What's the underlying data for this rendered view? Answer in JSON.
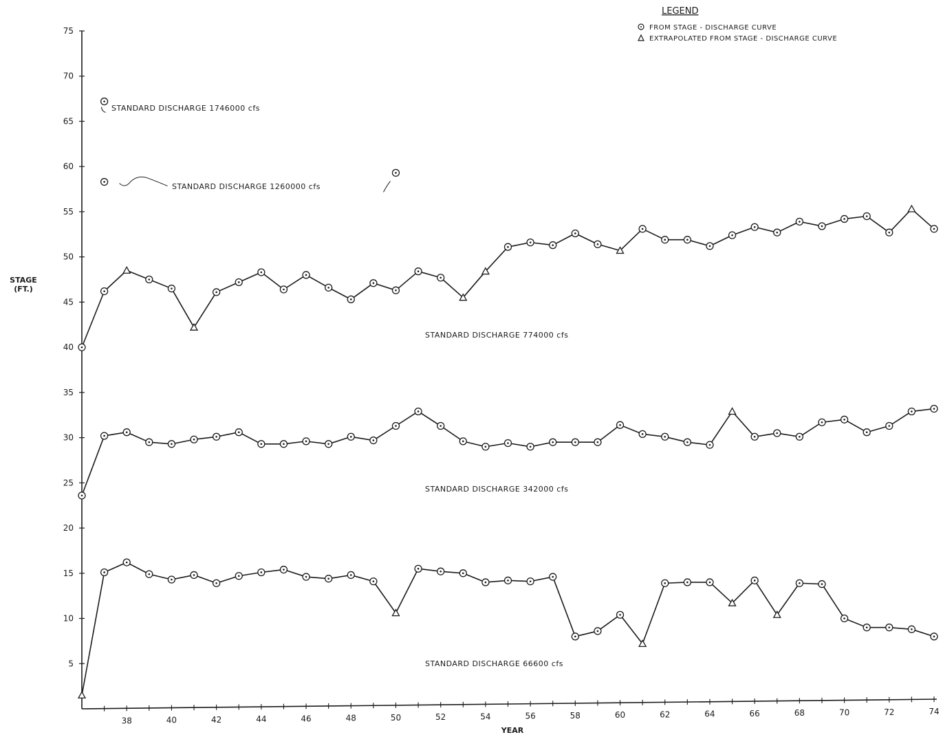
{
  "chart_data": {
    "type": "line",
    "xlabel": "YEAR",
    "ylabel": [
      "STAGE",
      "(FT.)"
    ],
    "xlim": [
      1936,
      1974
    ],
    "ylim": [
      0,
      75
    ],
    "y_ticks": [
      5,
      10,
      15,
      20,
      25,
      30,
      35,
      40,
      45,
      50,
      55,
      60,
      65,
      70,
      75
    ],
    "x_ticks": [
      1938,
      1940,
      1942,
      1944,
      1946,
      1948,
      1950,
      1952,
      1954,
      1956,
      1958,
      1960,
      1962,
      1964,
      1966,
      1968,
      1970,
      1972,
      1974
    ],
    "x_tick_labels": [
      "38",
      "40",
      "42",
      "44",
      "46",
      "48",
      "50",
      "52",
      "54",
      "56",
      "58",
      "60",
      "62",
      "64",
      "66",
      "68",
      "70",
      "72",
      "74"
    ],
    "grid": false,
    "legend": {
      "title": "LEGEND",
      "position": "top-right",
      "items": [
        {
          "marker": "circle-dot",
          "label": "FROM STAGE - DISCHARGE CURVE"
        },
        {
          "marker": "triangle",
          "label": "EXTRAPOLATED FROM STAGE - DISCHARGE CURVE"
        }
      ]
    },
    "series": [
      {
        "name": "STANDARD DISCHARGE 1746000 cfs",
        "x": [
          1937
        ],
        "y": [
          67.2
        ],
        "markers": [
          "circle"
        ]
      },
      {
        "name": "STANDARD DISCHARGE 1260000 cfs",
        "x": [
          1937,
          1950
        ],
        "y": [
          58.3,
          59.3
        ],
        "markers": [
          "circle",
          "circle"
        ],
        "connected": false
      },
      {
        "name": "STANDARD DISCHARGE 774000 cfs",
        "x": [
          1936,
          1937,
          1938,
          1939,
          1940,
          1941,
          1942,
          1943,
          1944,
          1945,
          1946,
          1947,
          1948,
          1949,
          1950,
          1951,
          1952,
          1953,
          1954,
          1955,
          1956,
          1957,
          1958,
          1959,
          1960,
          1961,
          1962,
          1963,
          1964,
          1965,
          1966,
          1967,
          1968,
          1969,
          1970,
          1971,
          1972,
          1973,
          1974
        ],
        "y": [
          40.0,
          46.2,
          48.5,
          47.5,
          46.5,
          42.2,
          46.1,
          47.2,
          48.3,
          46.4,
          48.0,
          46.6,
          45.3,
          47.1,
          46.3,
          48.4,
          47.7,
          45.5,
          48.4,
          51.1,
          51.6,
          51.3,
          52.6,
          51.4,
          50.7,
          53.1,
          51.9,
          51.9,
          51.2,
          52.4,
          53.3,
          52.7,
          53.9,
          53.4,
          54.2,
          54.5,
          52.7,
          55.3,
          53.1
        ],
        "markers": [
          "circle",
          "circle",
          "triangle",
          "circle",
          "circle",
          "triangle",
          "circle",
          "circle",
          "circle",
          "circle",
          "circle",
          "circle",
          "circle",
          "circle",
          "circle",
          "circle",
          "circle",
          "triangle",
          "triangle",
          "circle",
          "circle",
          "circle",
          "circle",
          "circle",
          "triangle",
          "circle",
          "circle",
          "circle",
          "circle",
          "circle",
          "circle",
          "circle",
          "circle",
          "circle",
          "circle",
          "circle",
          "circle",
          "triangle",
          "circle"
        ]
      },
      {
        "name": "STANDARD DISCHARGE 342000 cfs",
        "x": [
          1936,
          1937,
          1938,
          1939,
          1940,
          1941,
          1942,
          1943,
          1944,
          1945,
          1946,
          1947,
          1948,
          1949,
          1950,
          1951,
          1952,
          1953,
          1954,
          1955,
          1956,
          1957,
          1958,
          1959,
          1960,
          1961,
          1962,
          1963,
          1964,
          1965,
          1966,
          1967,
          1968,
          1969,
          1970,
          1971,
          1972,
          1973,
          1974
        ],
        "y": [
          23.6,
          30.2,
          30.6,
          29.5,
          29.3,
          29.8,
          30.1,
          30.6,
          29.3,
          29.3,
          29.6,
          29.3,
          30.1,
          29.7,
          31.3,
          32.9,
          31.3,
          29.6,
          29.0,
          29.4,
          29.0,
          29.5,
          29.5,
          29.5,
          31.4,
          30.4,
          30.1,
          29.5,
          29.2,
          32.9,
          30.1,
          30.5,
          30.1,
          31.7,
          32.0,
          30.6,
          31.3,
          32.9,
          33.2
        ],
        "markers": [
          "circle",
          "circle",
          "circle",
          "circle",
          "circle",
          "circle",
          "circle",
          "circle",
          "circle",
          "circle",
          "circle",
          "circle",
          "circle",
          "circle",
          "circle",
          "circle",
          "circle",
          "circle",
          "circle",
          "circle",
          "circle",
          "circle",
          "circle",
          "circle",
          "circle",
          "circle",
          "circle",
          "circle",
          "circle",
          "triangle",
          "circle",
          "circle",
          "circle",
          "circle",
          "circle",
          "circle",
          "circle",
          "circle",
          "circle"
        ]
      },
      {
        "name": "STANDARD DISCHARGE 66600 cfs",
        "x": [
          1936,
          1937,
          1938,
          1939,
          1940,
          1941,
          1942,
          1943,
          1944,
          1945,
          1946,
          1947,
          1948,
          1949,
          1950,
          1951,
          1952,
          1953,
          1954,
          1955,
          1956,
          1957,
          1958,
          1959,
          1960,
          1961,
          1962,
          1963,
          1964,
          1965,
          1966,
          1967,
          1968,
          1969,
          1970,
          1971,
          1972,
          1973,
          1974
        ],
        "y": [
          1.5,
          15.1,
          16.2,
          14.9,
          14.3,
          14.8,
          13.9,
          14.7,
          15.1,
          15.4,
          14.6,
          14.4,
          14.8,
          14.1,
          10.6,
          15.5,
          15.2,
          15.0,
          14.0,
          14.2,
          14.1,
          14.6,
          8.0,
          8.6,
          10.4,
          7.2,
          13.9,
          14.0,
          14.0,
          11.7,
          14.2,
          10.4,
          13.9,
          13.8,
          10.0,
          9.0,
          9.0,
          8.8,
          8.0
        ],
        "markers": [
          "triangle",
          "circle",
          "circle",
          "circle",
          "circle",
          "circle",
          "circle",
          "circle",
          "circle",
          "circle",
          "circle",
          "circle",
          "circle",
          "circle",
          "triangle",
          "circle",
          "circle",
          "circle",
          "circle",
          "circle",
          "circle",
          "circle",
          "circle",
          "circle",
          "circle",
          "triangle",
          "circle",
          "circle",
          "circle",
          "triangle",
          "circle",
          "triangle",
          "circle",
          "circle",
          "circle",
          "circle",
          "circle",
          "circle",
          "circle"
        ]
      }
    ],
    "annotations": [
      {
        "text": "STANDARD DISCHARGE 1746000 cfs",
        "series": "STANDARD DISCHARGE 1746000 cfs"
      },
      {
        "text": "STANDARD DISCHARGE 1260000 cfs",
        "series": "STANDARD DISCHARGE 1260000 cfs"
      },
      {
        "text": "STANDARD DISCHARGE 774000 cfs",
        "series": "STANDARD DISCHARGE 774000 cfs"
      },
      {
        "text": "STANDARD DISCHARGE 342000 cfs",
        "series": "STANDARD DISCHARGE 342000 cfs"
      },
      {
        "text": "STANDARD DISCHARGE 66600 cfs",
        "series": "STANDARD DISCHARGE 66600 cfs"
      }
    ]
  }
}
